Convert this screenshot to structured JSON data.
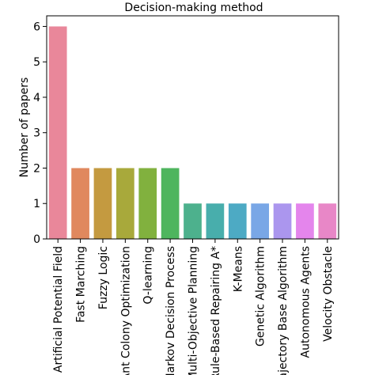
{
  "chart_data": {
    "type": "bar",
    "title": "Decision-making method",
    "xlabel": "",
    "ylabel": "Number of papers",
    "ylim": [
      0,
      6.3
    ],
    "yticks": [
      0,
      1,
      2,
      3,
      4,
      5,
      6
    ],
    "grid": false,
    "legend": "none",
    "categories": [
      "Artificial Potential Field",
      "Fast Marching",
      "Fuzzy Logic",
      "Ant Colony Optimization",
      "Q-learning",
      "Markov Decision Process",
      "Multi-Objective Planning",
      "Rule-Based Repairing A*",
      "K-Means",
      "Genetic Algorithm",
      "Trajectory Base Algorithm",
      "Autonomous Agents",
      "Velocity Obstacle"
    ],
    "values": [
      6,
      2,
      2,
      2,
      2,
      2,
      1,
      1,
      1,
      1,
      1,
      1,
      1
    ],
    "colors": [
      "#e9879a",
      "#e0885e",
      "#c49a40",
      "#a8a93b",
      "#81b13e",
      "#4eb55e",
      "#4db18d",
      "#48aeac",
      "#4daac4",
      "#79a7e6",
      "#ab96ee",
      "#e485ec",
      "#e887c7"
    ]
  }
}
